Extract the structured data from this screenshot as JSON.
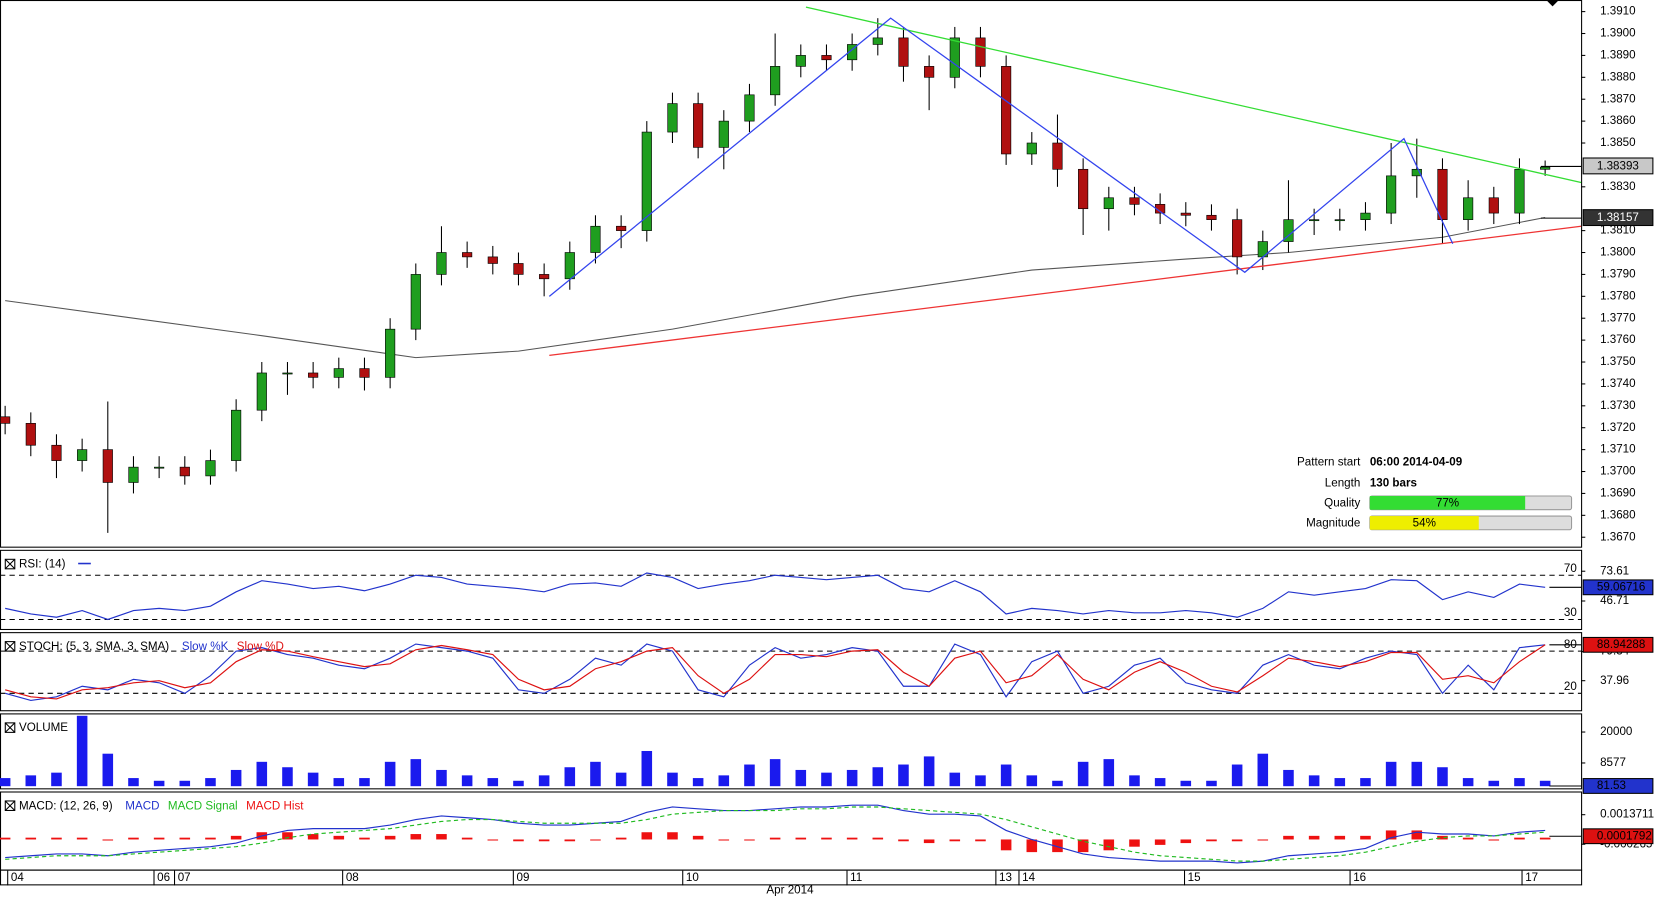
{
  "chart_data": [
    {
      "type": "candlestick",
      "xlim": [
        -0.2,
        61.4
      ],
      "ylim": [
        1.36657,
        1.39153
      ],
      "yticks": [
        {
          "value": 1.391,
          "label": "1.3910"
        },
        {
          "value": 1.39,
          "label": "1.3900"
        },
        {
          "value": 1.389,
          "label": "1.3890"
        },
        {
          "value": 1.388,
          "label": "1.3880"
        },
        {
          "value": 1.387,
          "label": "1.3870"
        },
        {
          "value": 1.386,
          "label": "1.3860"
        },
        {
          "value": 1.385,
          "label": "1.3850"
        },
        {
          "value": 1.383,
          "label": "1.3830"
        },
        {
          "value": 1.381,
          "label": "1.3810"
        },
        {
          "value": 1.38,
          "label": "1.3800"
        },
        {
          "value": 1.379,
          "label": "1.3790"
        },
        {
          "value": 1.378,
          "label": "1.3780"
        },
        {
          "value": 1.377,
          "label": "1.3770"
        },
        {
          "value": 1.376,
          "label": "1.3760"
        },
        {
          "value": 1.375,
          "label": "1.3750"
        },
        {
          "value": 1.374,
          "label": "1.3740"
        },
        {
          "value": 1.373,
          "label": "1.3730"
        },
        {
          "value": 1.372,
          "label": "1.3720"
        },
        {
          "value": 1.371,
          "label": "1.3710"
        },
        {
          "value": 1.37,
          "label": "1.3700"
        },
        {
          "value": 1.369,
          "label": "1.3690"
        },
        {
          "value": 1.368,
          "label": "1.3680"
        },
        {
          "value": 1.367,
          "label": "1.3670"
        }
      ],
      "open": [
        1.3725,
        1.3722,
        1.3712,
        1.3705,
        1.371,
        1.3695,
        1.3702,
        1.3702,
        1.3698,
        1.3705,
        1.3728,
        1.3745,
        1.3745,
        1.3743,
        1.3747,
        1.3743,
        1.3765,
        1.379,
        1.38,
        1.3798,
        1.3795,
        1.379,
        1.3788,
        1.38,
        1.3812,
        1.381,
        1.3855,
        1.3868,
        1.3848,
        1.386,
        1.3872,
        1.3885,
        1.389,
        1.3888,
        1.3895,
        1.3898,
        1.3885,
        1.388,
        1.3898,
        1.3885,
        1.3845,
        1.385,
        1.3838,
        1.382,
        1.3825,
        1.3822,
        1.3818,
        1.3817,
        1.3815,
        1.3798,
        1.3805,
        1.3815,
        1.3815,
        1.3815,
        1.3818,
        1.3835,
        1.3838,
        1.3815,
        1.3825,
        1.3818,
        1.3838
      ],
      "high": [
        1.373,
        1.3727,
        1.3717,
        1.3715,
        1.3732,
        1.3707,
        1.3707,
        1.3707,
        1.371,
        1.3733,
        1.375,
        1.375,
        1.375,
        1.3752,
        1.3752,
        1.377,
        1.3795,
        1.3812,
        1.3805,
        1.3803,
        1.38,
        1.3795,
        1.3805,
        1.3817,
        1.3817,
        1.386,
        1.3873,
        1.3873,
        1.3865,
        1.3877,
        1.39,
        1.3895,
        1.3895,
        1.39,
        1.3907,
        1.3903,
        1.389,
        1.3903,
        1.3903,
        1.389,
        1.3855,
        1.3863,
        1.3843,
        1.383,
        1.383,
        1.3827,
        1.3823,
        1.3822,
        1.382,
        1.381,
        1.3833,
        1.382,
        1.382,
        1.3823,
        1.385,
        1.3852,
        1.3843,
        1.3833,
        1.383,
        1.3843,
        1.3842
      ],
      "low": [
        1.3717,
        1.3707,
        1.3697,
        1.37,
        1.3672,
        1.369,
        1.3697,
        1.3694,
        1.3694,
        1.37,
        1.3723,
        1.3735,
        1.3738,
        1.3738,
        1.3737,
        1.3738,
        1.376,
        1.3785,
        1.3793,
        1.379,
        1.3785,
        1.378,
        1.3783,
        1.3795,
        1.3802,
        1.3805,
        1.385,
        1.3843,
        1.3838,
        1.3855,
        1.3867,
        1.388,
        1.3883,
        1.3883,
        1.389,
        1.3878,
        1.3865,
        1.3875,
        1.388,
        1.384,
        1.384,
        1.383,
        1.3808,
        1.381,
        1.3817,
        1.3813,
        1.3812,
        1.381,
        1.379,
        1.3792,
        1.38,
        1.3808,
        1.381,
        1.381,
        1.3813,
        1.3825,
        1.3804,
        1.381,
        1.3813,
        1.3813,
        1.3835
      ],
      "close": [
        1.3722,
        1.3712,
        1.3705,
        1.371,
        1.3695,
        1.3702,
        1.3702,
        1.3698,
        1.3705,
        1.3728,
        1.3745,
        1.3745,
        1.3743,
        1.3747,
        1.3743,
        1.3765,
        1.379,
        1.38,
        1.3798,
        1.3795,
        1.379,
        1.3788,
        1.38,
        1.3812,
        1.381,
        1.3855,
        1.3868,
        1.3848,
        1.386,
        1.3872,
        1.3885,
        1.389,
        1.3888,
        1.3895,
        1.3898,
        1.3885,
        1.388,
        1.3898,
        1.3885,
        1.3845,
        1.385,
        1.3838,
        1.382,
        1.3825,
        1.3822,
        1.3818,
        1.3817,
        1.3815,
        1.3798,
        1.3805,
        1.3815,
        1.3815,
        1.3815,
        1.3818,
        1.3835,
        1.3838,
        1.3815,
        1.3825,
        1.3818,
        1.3838,
        1.3839
      ],
      "up_color": "#1f9e1f",
      "down_color": "#b01010",
      "ma": {
        "x": [
          0,
          10,
          16,
          20,
          26,
          33,
          40,
          46,
          50,
          56,
          60
        ],
        "values": [
          1.3778,
          1.3762,
          1.3752,
          1.3755,
          1.3765,
          1.378,
          1.3792,
          1.3797,
          1.38,
          1.3807,
          1.3816
        ],
        "color": "#555555"
      },
      "lines": [
        {
          "x": [
            31.2,
            61.4
          ],
          "values": [
            1.3912,
            1.3832
          ],
          "color": "#33dd33"
        },
        {
          "x": [
            21.2,
            61.4
          ],
          "values": [
            1.3753,
            1.3812
          ],
          "color": "#ee3333"
        },
        {
          "x": [
            21.2,
            34.5,
            48.3,
            54.5,
            56.4
          ],
          "values": [
            1.378,
            1.3907,
            1.3791,
            1.3852,
            1.3804
          ],
          "color": "#3344ee"
        }
      ],
      "price_markers": [
        1.38393,
        1.38157
      ],
      "pattern": {
        "start_label": "Pattern start",
        "start": "06:00 2014-04-09",
        "length_label": "Length",
        "length": "130 bars",
        "quality_label": "Quality",
        "quality": 77,
        "quality_text": "77%",
        "quality_color": "#33dd33",
        "magnitude_label": "Magnitude",
        "magnitude": 54,
        "magnitude_text": "54%",
        "magnitude_color": "#eeee00"
      },
      "x_labels": [
        {
          "value": 0.1,
          "label": "04"
        },
        {
          "value": 5.8,
          "label": "06"
        },
        {
          "value": 6.6,
          "label": "07"
        },
        {
          "value": 13.15,
          "label": "08"
        },
        {
          "value": 19.8,
          "label": "09"
        },
        {
          "value": 26.4,
          "label": "10"
        },
        {
          "value": 32.8,
          "label": "11"
        },
        {
          "value": 38.6,
          "label": "13"
        },
        {
          "value": 39.5,
          "label": "14"
        },
        {
          "value": 45.95,
          "label": "15"
        },
        {
          "value": 52.4,
          "label": "16"
        },
        {
          "value": 59.1,
          "label": "17"
        }
      ],
      "xlabel": "Apr 2014"
    },
    {
      "type": "line",
      "title": "RSI: (14)",
      "ylim": [
        20.5,
        92
      ],
      "yticks": [
        73.61,
        46.71
      ],
      "levels": [
        70,
        30
      ],
      "last": 59.06716,
      "last_color": "#2233cc",
      "series": [
        {
          "color": "#2233cc",
          "values": [
            40,
            35,
            32,
            38,
            30,
            38,
            40,
            38,
            42,
            55,
            65,
            62,
            58,
            60,
            56,
            62,
            70,
            68,
            62,
            60,
            58,
            55,
            62,
            63,
            60,
            72,
            68,
            58,
            62,
            65,
            70,
            68,
            66,
            68,
            70,
            58,
            55,
            65,
            55,
            35,
            40,
            38,
            35,
            38,
            36,
            36,
            38,
            36,
            32,
            40,
            55,
            52,
            55,
            58,
            66,
            65,
            48,
            55,
            50,
            62,
            59.07
          ]
        }
      ]
    },
    {
      "type": "line",
      "title": "STOCH: (5, 3, SMA, 3, SMA)",
      "ylim": [
        -4,
        105.5
      ],
      "yticks": [
        79.34,
        37.96
      ],
      "levels": [
        80,
        20
      ],
      "last": 88.94288,
      "last_color": "#dd1111",
      "series": [
        {
          "name": "Slow %K",
          "color": "#2233cc",
          "values": [
            20,
            10,
            15,
            30,
            25,
            40,
            35,
            20,
            45,
            80,
            85,
            75,
            70,
            60,
            55,
            70,
            90,
            85,
            80,
            70,
            25,
            20,
            40,
            70,
            60,
            90,
            80,
            25,
            15,
            60,
            85,
            70,
            75,
            85,
            80,
            30,
            30,
            90,
            75,
            15,
            65,
            80,
            20,
            30,
            60,
            70,
            35,
            25,
            20,
            60,
            75,
            60,
            55,
            70,
            80,
            75,
            20,
            60,
            25,
            85,
            89
          ]
        },
        {
          "name": "Slow %D",
          "color": "#dd1111",
          "values": [
            25,
            15,
            12,
            25,
            28,
            35,
            38,
            28,
            35,
            65,
            82,
            80,
            72,
            65,
            58,
            62,
            82,
            88,
            82,
            75,
            40,
            25,
            30,
            55,
            65,
            80,
            85,
            45,
            20,
            40,
            75,
            75,
            72,
            80,
            82,
            50,
            30,
            70,
            80,
            35,
            45,
            75,
            40,
            25,
            50,
            65,
            50,
            30,
            22,
            45,
            70,
            65,
            58,
            65,
            78,
            78,
            40,
            45,
            35,
            65,
            89
          ]
        }
      ]
    },
    {
      "type": "bar",
      "title": "VOLUME",
      "ylim": [
        0,
        26500
      ],
      "yticks": [
        20000,
        8577
      ],
      "last": 81.53,
      "last_color": "#2233cc",
      "color": "#1a1aee",
      "values": [
        3000,
        4000,
        5000,
        26000,
        12000,
        3000,
        2000,
        2000,
        3000,
        6000,
        9000,
        7000,
        5000,
        3000,
        3000,
        9000,
        10000,
        6000,
        4000,
        3000,
        2000,
        4000,
        7000,
        9000,
        5000,
        13000,
        5000,
        3000,
        4000,
        8000,
        10000,
        6000,
        5000,
        6000,
        7000,
        8000,
        11000,
        5000,
        4000,
        8000,
        4000,
        2000,
        9000,
        10000,
        4000,
        3000,
        2000,
        2000,
        8000,
        12000,
        6000,
        4000,
        3000,
        3000,
        9000,
        9000,
        7000,
        3000,
        2000,
        3000,
        2000
      ]
    },
    {
      "type": "macd",
      "title": "MACD: (12, 26, 9)",
      "ylim": [
        -0.001724,
        0.002598
      ],
      "yticks": [
        0.0013711,
        -0.000265
      ],
      "last": 0.0001792,
      "last_color": "#dd1111",
      "series": [
        {
          "name": "MACD",
          "color": "#2233cc",
          "values": [
            -0.001,
            -0.0009,
            -0.0008,
            -0.0008,
            -0.0009,
            -0.0007,
            -0.0006,
            -0.0005,
            -0.0004,
            -0.0002,
            0.0002,
            0.0005,
            0.0006,
            0.0006,
            0.0006,
            0.0008,
            0.0011,
            0.0013,
            0.0012,
            0.0011,
            0.0009,
            0.0008,
            0.0008,
            0.0009,
            0.001,
            0.0015,
            0.0018,
            0.0017,
            0.0016,
            0.0016,
            0.0017,
            0.0018,
            0.0018,
            0.0019,
            0.0019,
            0.0016,
            0.0014,
            0.0014,
            0.0013,
            0.0005,
            0,
            -0.0004,
            -0.0008,
            -0.001,
            -0.0011,
            -0.0012,
            -0.0012,
            -0.0012,
            -0.0013,
            -0.0012,
            -0.0009,
            -0.0008,
            -0.0007,
            -0.0005,
            0.0001,
            0.0004,
            0.0003,
            0.0003,
            0.0002,
            0.0004,
            0.0005
          ]
        },
        {
          "name": "MACD Signal",
          "color": "#22bb22",
          "values": [
            -0.0011,
            -0.001,
            -0.0009,
            -0.0009,
            -0.0009,
            -0.0008,
            -0.0007,
            -0.0006,
            -0.0005,
            -0.0004,
            -0.0002,
            0.0001,
            0.0003,
            0.0004,
            0.0005,
            0.0006,
            0.0008,
            0.001,
            0.0011,
            0.0011,
            0.001,
            0.0009,
            0.0009,
            0.0009,
            0.0009,
            0.0011,
            0.0014,
            0.0015,
            0.0016,
            0.0016,
            0.0016,
            0.0017,
            0.0017,
            0.0018,
            0.0018,
            0.0017,
            0.0016,
            0.0015,
            0.0014,
            0.0011,
            0.0007,
            0.0003,
            -0.0001,
            -0.0004,
            -0.0007,
            -0.0009,
            -0.001,
            -0.0011,
            -0.0012,
            -0.0012,
            -0.0011,
            -0.001,
            -0.0009,
            -0.0007,
            -0.0004,
            -0.0001,
            0.0001,
            0.0002,
            0.0002,
            0.0003,
            0.0004
          ]
        },
        {
          "name": "MACD Hist",
          "color": "#ee1111",
          "values": [
            0.0001,
            0.0001,
            0.0001,
            0.0001,
            0,
            0.0001,
            0.0001,
            0.0001,
            0.0001,
            0.0002,
            0.0004,
            0.0004,
            0.0003,
            0.0002,
            0.0001,
            0.0002,
            0.0003,
            0.0003,
            0.0001,
            0,
            -0.0001,
            -0.0001,
            -0.0001,
            0,
            0.0001,
            0.0004,
            0.0004,
            0.0002,
            0,
            0,
            0.0001,
            0.0001,
            0.0001,
            0.0001,
            0.0001,
            -0.0001,
            -0.0002,
            -0.0001,
            -0.0001,
            -0.0006,
            -0.0007,
            -0.0007,
            -0.0007,
            -0.0006,
            -0.0004,
            -0.0003,
            -0.0002,
            -0.0001,
            -0.0001,
            0,
            0.0002,
            0.0002,
            0.0002,
            0.0002,
            0.0005,
            0.0005,
            0.0002,
            0.0001,
            0,
            0.0001,
            0.0001
          ]
        }
      ]
    }
  ]
}
